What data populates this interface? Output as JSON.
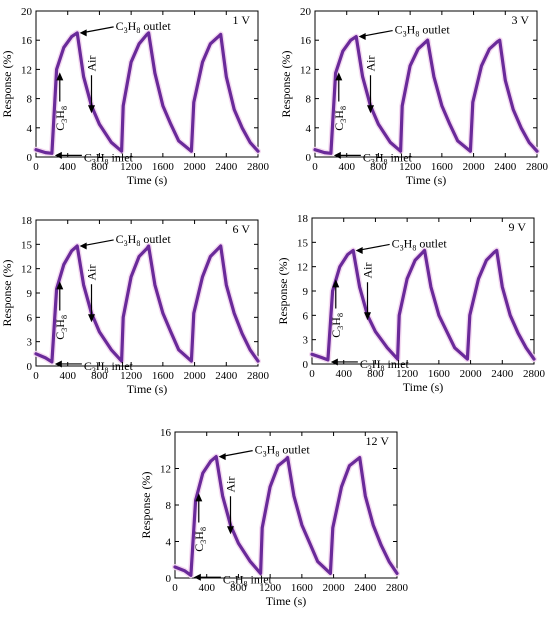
{
  "chart_data": [
    {
      "type": "line",
      "voltage": "1 V",
      "xlabel": "Time (s)",
      "ylabel": "Response (%)",
      "xlim": [
        0,
        2800
      ],
      "ylim": [
        0,
        20
      ],
      "xticks": [
        "0",
        "400",
        "800",
        "1200",
        "1600",
        "2000",
        "2400",
        "2800"
      ],
      "yticks": [
        "0",
        "4",
        "8",
        "12",
        "16",
        "20"
      ],
      "annotations": {
        "outlet": "C3H8 outlet",
        "inlet": "C3H8 inlet",
        "gas": "C3H8",
        "air": "Air"
      },
      "series": [
        {
          "x": [
            0,
            120,
            200,
            260,
            350,
            450,
            520,
            600,
            700,
            800,
            950,
            1080,
            1100,
            1200,
            1300,
            1400,
            1420,
            1500,
            1600,
            1700,
            1800,
            1960,
            1990,
            2100,
            2200,
            2300,
            2330,
            2400,
            2500,
            2600,
            2700,
            2800
          ],
          "y": [
            1.0,
            0.6,
            0.5,
            12.0,
            15.0,
            16.5,
            17.0,
            11.0,
            7.0,
            4.5,
            2.0,
            0.8,
            7.0,
            13.0,
            15.5,
            16.8,
            17.0,
            11.5,
            7.0,
            4.5,
            2.2,
            0.8,
            7.5,
            13.0,
            15.5,
            16.5,
            16.8,
            11.0,
            6.5,
            4.0,
            2.0,
            0.8
          ]
        }
      ]
    },
    {
      "type": "line",
      "voltage": "3 V",
      "xlabel": "Time (s)",
      "ylabel": "Response (%)",
      "xlim": [
        0,
        2800
      ],
      "ylim": [
        0,
        20
      ],
      "xticks": [
        "0",
        "400",
        "800",
        "1200",
        "1600",
        "2000",
        "2400",
        "2800"
      ],
      "yticks": [
        "0",
        "4",
        "8",
        "12",
        "16",
        "20"
      ],
      "annotations": {
        "outlet": "C3H8 outlet",
        "inlet": "C3H8 inlet",
        "gas": "C3H8",
        "air": "Air"
      },
      "series": [
        {
          "x": [
            0,
            120,
            200,
            260,
            350,
            450,
            520,
            600,
            700,
            800,
            950,
            1080,
            1100,
            1200,
            1300,
            1400,
            1420,
            1500,
            1600,
            1700,
            1800,
            1960,
            1990,
            2100,
            2200,
            2300,
            2330,
            2400,
            2500,
            2600,
            2700,
            2800
          ],
          "y": [
            1.0,
            0.6,
            0.5,
            11.5,
            14.5,
            16.0,
            16.5,
            11.0,
            7.0,
            4.5,
            2.0,
            0.8,
            7.0,
            12.5,
            14.8,
            15.8,
            16.0,
            11.0,
            7.0,
            4.5,
            2.2,
            0.8,
            7.5,
            12.5,
            14.8,
            15.8,
            16.0,
            10.5,
            6.5,
            4.0,
            2.0,
            0.8
          ]
        }
      ]
    },
    {
      "type": "line",
      "voltage": "6 V",
      "xlabel": "Time (s)",
      "ylabel": "Response (%)",
      "xlim": [
        0,
        2800
      ],
      "ylim": [
        0,
        18
      ],
      "xticks": [
        "0",
        "400",
        "800",
        "1200",
        "1600",
        "2000",
        "2400",
        "2800"
      ],
      "yticks": [
        "0",
        "3",
        "6",
        "9",
        "12",
        "15",
        "18"
      ],
      "annotations": {
        "outlet": "C3H8 outlet",
        "inlet": "C3H8 inlet",
        "gas": "C3H8",
        "air": "Air"
      },
      "series": [
        {
          "x": [
            0,
            120,
            200,
            260,
            350,
            450,
            520,
            600,
            700,
            800,
            950,
            1080,
            1100,
            1200,
            1300,
            1400,
            1420,
            1500,
            1600,
            1700,
            1800,
            1960,
            1990,
            2100,
            2200,
            2300,
            2330,
            2400,
            2500,
            2600,
            2700,
            2800
          ],
          "y": [
            1.5,
            1.0,
            0.5,
            9.5,
            12.5,
            14.2,
            14.8,
            10.0,
            6.5,
            4.2,
            2.0,
            0.6,
            6.0,
            11.0,
            13.5,
            14.5,
            14.8,
            10.0,
            6.5,
            4.2,
            2.0,
            0.6,
            6.5,
            11.0,
            13.5,
            14.5,
            14.8,
            10.0,
            6.5,
            4.0,
            2.0,
            0.6
          ]
        }
      ]
    },
    {
      "type": "line",
      "voltage": "9 V",
      "xlabel": "Time (s)",
      "ylabel": "Response (%)",
      "xlim": [
        0,
        2800
      ],
      "ylim": [
        0,
        18
      ],
      "xticks": [
        "0",
        "400",
        "800",
        "1200",
        "1600",
        "2000",
        "2400",
        "2800"
      ],
      "yticks": [
        "0",
        "3",
        "6",
        "9",
        "12",
        "15",
        "18"
      ],
      "annotations": {
        "outlet": "C3H8 outlet",
        "inlet": "C3H8 inlet",
        "gas": "C3H8",
        "air": "Air"
      },
      "series": [
        {
          "x": [
            0,
            120,
            200,
            260,
            350,
            450,
            520,
            600,
            700,
            800,
            950,
            1080,
            1100,
            1200,
            1300,
            1400,
            1420,
            1500,
            1600,
            1700,
            1800,
            1960,
            1990,
            2100,
            2200,
            2300,
            2330,
            2400,
            2500,
            2600,
            2700,
            2800
          ],
          "y": [
            1.2,
            0.8,
            0.5,
            9.0,
            12.0,
            13.5,
            14.0,
            9.5,
            6.0,
            4.0,
            2.0,
            0.6,
            6.0,
            10.5,
            12.8,
            13.8,
            14.0,
            9.5,
            6.0,
            4.0,
            2.0,
            0.6,
            6.0,
            10.5,
            12.8,
            13.8,
            14.0,
            9.5,
            6.0,
            3.8,
            2.0,
            0.6
          ]
        }
      ]
    },
    {
      "type": "line",
      "voltage": "12 V",
      "xlabel": "Time (s)",
      "ylabel": "Response (%)",
      "xlim": [
        0,
        2800
      ],
      "ylim": [
        0,
        16
      ],
      "xticks": [
        "0",
        "400",
        "800",
        "1200",
        "1600",
        "2000",
        "2400",
        "2800"
      ],
      "yticks": [
        "0",
        "4",
        "8",
        "12",
        "16"
      ],
      "annotations": {
        "outlet": "C3H8 outlet",
        "inlet": "C3H8 inlet",
        "gas": "C3H8",
        "air": "Air"
      },
      "series": [
        {
          "x": [
            0,
            120,
            200,
            260,
            350,
            450,
            520,
            600,
            700,
            800,
            950,
            1080,
            1100,
            1200,
            1300,
            1400,
            1420,
            1500,
            1600,
            1700,
            1800,
            1960,
            1990,
            2100,
            2200,
            2300,
            2330,
            2400,
            2500,
            2600,
            2700,
            2800
          ],
          "y": [
            1.2,
            0.8,
            0.3,
            8.5,
            11.5,
            12.8,
            13.3,
            9.0,
            5.8,
            3.8,
            1.8,
            0.5,
            5.5,
            10.0,
            12.3,
            13.0,
            13.2,
            9.0,
            5.8,
            3.8,
            1.8,
            0.5,
            5.5,
            10.0,
            12.3,
            13.0,
            13.2,
            9.0,
            5.8,
            3.6,
            1.8,
            0.5
          ]
        }
      ]
    }
  ],
  "colors": {
    "series": "#6a2a9a",
    "glow": "#f3d6ef"
  }
}
